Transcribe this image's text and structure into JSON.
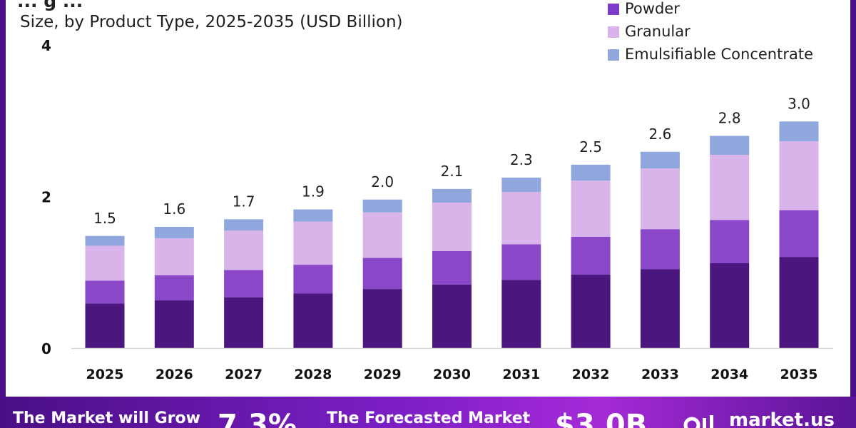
{
  "header": {
    "clipped_title": "... g ...",
    "subtitle": "Size, by Product Type, 2025-2035 (USD Billion)"
  },
  "legend": [
    {
      "label": "Powder",
      "color": "#7c3ec9"
    },
    {
      "label": "Granular",
      "color": "#d8b4ea"
    },
    {
      "label": "Emulsifiable Concentrate",
      "color": "#8fa7dd"
    }
  ],
  "chart_data": {
    "type": "bar",
    "stacked": true,
    "subtitle": "Size, by Product Type, 2025-2035 (USD Billion)",
    "categories": [
      "2025",
      "2026",
      "2027",
      "2028",
      "2029",
      "2030",
      "2031",
      "2032",
      "2033",
      "2034",
      "2035"
    ],
    "series": [
      {
        "name": "",
        "color": "#4c167f",
        "values": [
          0.59,
          0.63,
          0.67,
          0.72,
          0.78,
          0.84,
          0.9,
          0.97,
          1.04,
          1.12,
          1.2
        ]
      },
      {
        "name": "Powder",
        "color": "#8a47c8",
        "values": [
          0.3,
          0.33,
          0.36,
          0.38,
          0.41,
          0.44,
          0.47,
          0.5,
          0.53,
          0.57,
          0.62
        ]
      },
      {
        "name": "Granular",
        "color": "#d8b4ea",
        "values": [
          0.46,
          0.49,
          0.52,
          0.57,
          0.6,
          0.64,
          0.69,
          0.74,
          0.8,
          0.86,
          0.91
        ]
      },
      {
        "name": "Emulsifiable Concentrate",
        "color": "#8fa7dd",
        "values": [
          0.13,
          0.15,
          0.15,
          0.16,
          0.17,
          0.18,
          0.19,
          0.21,
          0.22,
          0.25,
          0.26
        ]
      }
    ],
    "totals": [
      "1.5",
      "1.6",
      "1.7",
      "1.9",
      "2.0",
      "2.1",
      "2.3",
      "2.5",
      "2.6",
      "2.8",
      "3.0"
    ],
    "yticks": [
      "0",
      "2",
      "4"
    ],
    "ylim": [
      0,
      4
    ],
    "grid": false,
    "legend_position": "top-right"
  },
  "banner": {
    "grow_text": "The Market will Grow",
    "cagr": "7.3%",
    "forecast_text": "The Forecasted Market",
    "forecast_value": "$3.0B",
    "brand": "market.us",
    "brand_icon": "market-us-logo-icon"
  }
}
